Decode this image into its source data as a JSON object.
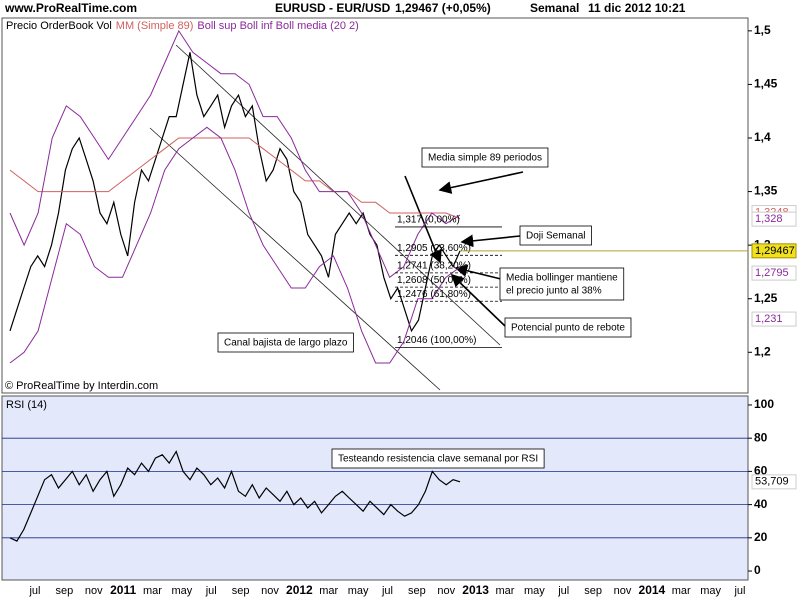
{
  "header": {
    "site": "www.ProRealTime.com",
    "symbol": "EURUSD - EUR/USD",
    "price": "1,29467 (+0,05%)",
    "period": "Semanal",
    "date": "11 dic 2012 10:21"
  },
  "x_axis_labels": [
    "jul",
    "sep",
    "nov",
    "2011",
    "mar",
    "may",
    "jul",
    "sep",
    "nov",
    "2012",
    "mar",
    "may",
    "jul",
    "sep",
    "nov",
    "2013",
    "mar",
    "may",
    "jul",
    "sep",
    "nov",
    "2014",
    "mar",
    "may",
    "jul"
  ],
  "chart_data": [
    {
      "type": "line",
      "legend": [
        {
          "name": "Precio OrderBook Vol",
          "color": "#000000"
        },
        {
          "name": "MM (Simple 89)",
          "color": "#d06060"
        },
        {
          "name": "Boll sup Boll inf Boll media (20 2)",
          "color": "#8a2a9a"
        }
      ],
      "copyright": "© ProRealTime by Interdin.com",
      "ylim": [
        1.162,
        1.512
      ],
      "yticks": [
        {
          "value": 1.5,
          "label": "1,5"
        },
        {
          "value": 1.45,
          "label": "1,45"
        },
        {
          "value": 1.4,
          "label": "1,4"
        },
        {
          "value": 1.35,
          "label": "1,35"
        },
        {
          "value": 1.3,
          "label": "1,3"
        },
        {
          "value": 1.25,
          "label": "1,25"
        },
        {
          "value": 1.2,
          "label": "1,2"
        }
      ],
      "series": [
        {
          "name": "Precio",
          "color": "#000000",
          "values": [
            1.22,
            1.24,
            1.26,
            1.28,
            1.29,
            1.28,
            1.3,
            1.33,
            1.37,
            1.39,
            1.4,
            1.38,
            1.36,
            1.33,
            1.32,
            1.34,
            1.31,
            1.29,
            1.34,
            1.37,
            1.36,
            1.38,
            1.4,
            1.42,
            1.42,
            1.45,
            1.48,
            1.44,
            1.42,
            1.43,
            1.44,
            1.41,
            1.43,
            1.44,
            1.42,
            1.43,
            1.39,
            1.36,
            1.37,
            1.39,
            1.38,
            1.35,
            1.34,
            1.31,
            1.3,
            1.29,
            1.27,
            1.31,
            1.32,
            1.33,
            1.32,
            1.33,
            1.31,
            1.3,
            1.27,
            1.25,
            1.26,
            1.24,
            1.22,
            1.23,
            1.26,
            1.29,
            1.3,
            1.29,
            1.28,
            1.29467
          ]
        },
        {
          "name": "MM",
          "color": "#d06060",
          "values": [
            1.37,
            1.36,
            1.35,
            1.35,
            1.35,
            1.35,
            1.35,
            1.35,
            1.36,
            1.37,
            1.38,
            1.39,
            1.4,
            1.4,
            1.4,
            1.4,
            1.4,
            1.4,
            1.39,
            1.38,
            1.37,
            1.36,
            1.36,
            1.35,
            1.35,
            1.34,
            1.34,
            1.33,
            1.33,
            1.33,
            1.33,
            1.33,
            1.3248
          ]
        },
        {
          "name": "Boll sup",
          "color": "#8a2a9a",
          "values": [
            1.33,
            1.3,
            1.33,
            1.4,
            1.43,
            1.42,
            1.4,
            1.38,
            1.4,
            1.42,
            1.44,
            1.47,
            1.5,
            1.48,
            1.47,
            1.46,
            1.46,
            1.45,
            1.42,
            1.42,
            1.4,
            1.37,
            1.35,
            1.35,
            1.35,
            1.33,
            1.3,
            1.27,
            1.28,
            1.31,
            1.33,
            1.32,
            1.328
          ]
        },
        {
          "name": "Boll inf",
          "color": "#8a2a9a",
          "values": [
            1.19,
            1.2,
            1.22,
            1.27,
            1.32,
            1.31,
            1.28,
            1.27,
            1.27,
            1.3,
            1.33,
            1.37,
            1.39,
            1.4,
            1.41,
            1.4,
            1.37,
            1.33,
            1.3,
            1.28,
            1.26,
            1.26,
            1.28,
            1.29,
            1.26,
            1.22,
            1.19,
            1.19,
            1.21,
            1.25,
            1.25,
            1.27,
            1.2795
          ]
        }
      ],
      "last_values": [
        {
          "value": 1.3248,
          "label": "1,3248",
          "color": "#d06060"
        },
        {
          "value": 1.328,
          "label": "1,328",
          "color": "#8a2a9a"
        },
        {
          "value": 1.29467,
          "label": "1,29467",
          "color": "#000000"
        },
        {
          "value": 1.2795,
          "label": "1,2795",
          "color": "#8a2a9a"
        },
        {
          "value": 1.231,
          "label": "1,231",
          "color": "#8a2a9a"
        }
      ],
      "fibonacci": [
        {
          "value": 1.317,
          "label": "1,317 (0,00%)"
        },
        {
          "value": 1.2905,
          "label": "1,2905 (23,60%)"
        },
        {
          "value": 1.2741,
          "label": "1,2741 (38,20%)"
        },
        {
          "value": 1.2608,
          "label": "1,2608 (50,00%)"
        },
        {
          "value": 1.2476,
          "label": "1,2476 (61,80%)"
        },
        {
          "value": 1.2046,
          "label": "1,2046 (100,00%)"
        }
      ],
      "annotations": [
        [
          "Media simple 89 periodos"
        ],
        [
          "Doji Semanal"
        ],
        [
          "Media bollinger mantiene",
          "el precio junto al 38%"
        ],
        [
          "Potencial punto de rebote"
        ],
        [
          "Canal bajista de largo plazo"
        ]
      ]
    },
    {
      "type": "line",
      "title": "RSI (14)",
      "ylim": [
        -5.4,
        105.4
      ],
      "yticks": [
        0,
        20,
        40,
        60,
        80,
        100
      ],
      "series": [
        {
          "name": "RSI",
          "color": "#000000",
          "values": [
            20,
            18,
            25,
            35,
            45,
            55,
            58,
            50,
            55,
            60,
            52,
            58,
            48,
            55,
            60,
            45,
            52,
            62,
            58,
            65,
            60,
            68,
            70,
            65,
            72,
            60,
            55,
            62,
            58,
            52,
            56,
            50,
            60,
            48,
            45,
            52,
            44,
            50,
            46,
            42,
            48,
            40,
            44,
            38,
            42,
            35,
            40,
            45,
            48,
            44,
            40,
            36,
            42,
            38,
            34,
            40,
            36,
            33,
            35,
            40,
            48,
            60,
            55,
            52,
            55,
            53.709
          ]
        }
      ],
      "last_value_label": {
        "value": 53.709,
        "label": "53,709"
      },
      "annotations": [
        [
          "Testeando resistencia clave semanal por RSI"
        ]
      ]
    }
  ]
}
